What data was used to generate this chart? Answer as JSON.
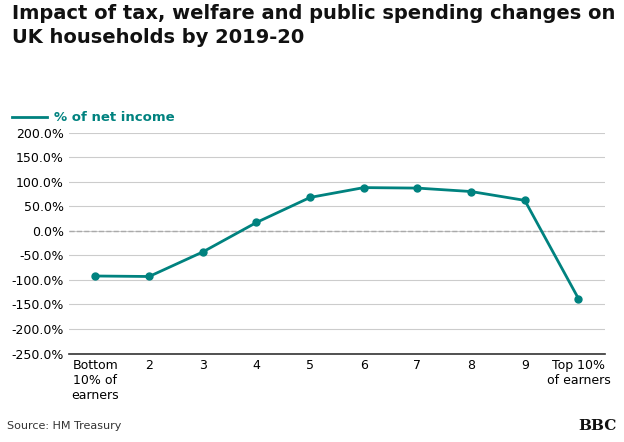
{
  "title": "Impact of tax, welfare and public spending changes on\nUK households by 2019-20",
  "legend_label": "% of net income",
  "x_labels": [
    "Bottom\n10% of\nearners",
    "2",
    "3",
    "4",
    "5",
    "6",
    "7",
    "8",
    "9",
    "Top 10%\nof earners"
  ],
  "x_values": [
    1,
    2,
    3,
    4,
    5,
    6,
    7,
    8,
    9,
    10
  ],
  "y_values": [
    -0.92,
    -0.93,
    -0.43,
    0.17,
    0.68,
    0.88,
    0.87,
    0.8,
    0.62,
    -1.38
  ],
  "line_color": "#00827F",
  "marker": "o",
  "marker_size": 5,
  "ylim": [
    -2.5,
    2.0
  ],
  "yticks": [
    -2.5,
    -2.0,
    -1.5,
    -1.0,
    -0.5,
    0.0,
    0.5,
    1.0,
    1.5,
    2.0
  ],
  "grid_color": "#cccccc",
  "zero_line_color": "#aaaaaa",
  "background_color": "#ffffff",
  "footer_bg": "#d9d9d9",
  "title_fontsize": 14,
  "legend_fontsize": 9.5,
  "tick_fontsize": 9,
  "source_text": "Source: HM Treasury",
  "bbc_text": "BBC"
}
